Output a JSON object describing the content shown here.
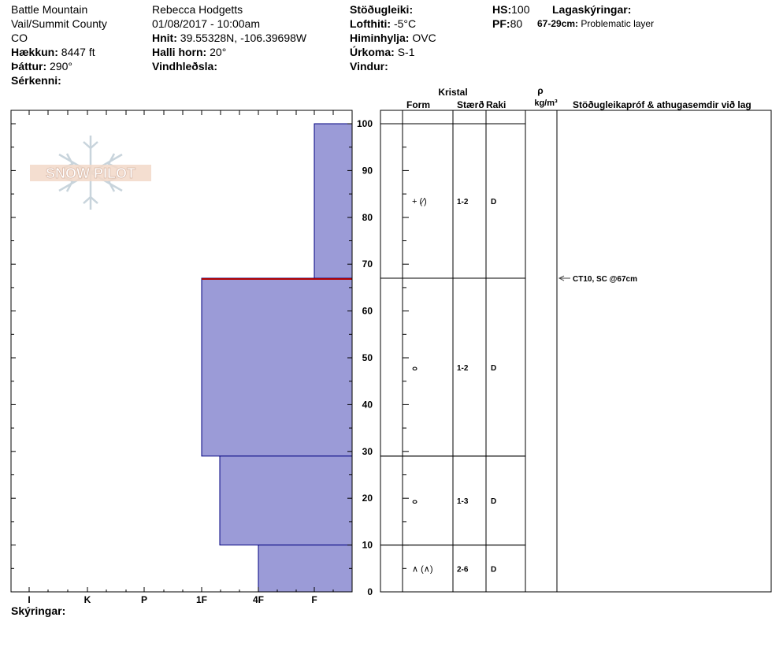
{
  "header": {
    "location_name": "Battle Mountain",
    "region": "Vail/Summit County",
    "state": "CO",
    "elevation_label": "Hækkun:",
    "elevation_value": "8447 ft",
    "aspect_label": "Þáttur:",
    "aspect_value": "290°",
    "features_label": "Sérkenni:",
    "observer": "Rebecca Hodgetts",
    "datetime": "01/08/2017 - 10:00am",
    "coords_label": "Hnit:",
    "coords_value": "39.55328N, -106.39698W",
    "slope_label": "Halli horn:",
    "slope_value": "20°",
    "wind_loading_label": "Vindhleðsla:",
    "stability_label": "Stöðugleiki:",
    "air_temp_label": "Lofthiti:",
    "air_temp_value": "-5°C",
    "sky_label": "Himinhylja:",
    "sky_value": "OVC",
    "precip_label": "Úrkoma:",
    "precip_value": "S-1",
    "wind_label": "Vindur:",
    "hs_label": "HS:",
    "hs_value": "100",
    "pf_label": "PF:",
    "pf_value": "80",
    "layer_notes_label": "Lagaskýringar:",
    "layer_note_range": "67-29cm:",
    "layer_note_text": "Problematic layer"
  },
  "table_headers": {
    "crystal": "Kristal",
    "form": "Form",
    "size": "Stærð",
    "moisture": "Raki",
    "rho": "ρ",
    "density_unit": "kg/m³",
    "comments": "Stöðugleikapróf & athugasemdir við lag"
  },
  "logo_text": "SNOW PILOT",
  "footer": {
    "notes_label": "Skýringar:"
  },
  "colors": {
    "layer_fill": "#9b9bd7",
    "layer_stroke": "#000080",
    "problem_line": "#b00000"
  },
  "chart_data": {
    "type": "bar",
    "orientation": "horizontal",
    "y_axis": {
      "label": "",
      "ylim": [
        0,
        100
      ],
      "ticks": [
        0,
        10,
        20,
        30,
        40,
        50,
        60,
        70,
        80,
        90,
        100
      ]
    },
    "x_axis": {
      "categories": [
        "I",
        "K",
        "P",
        "1F",
        "4F",
        "F"
      ],
      "reversed": true
    },
    "layers": [
      {
        "bottom": 67,
        "top": 100,
        "hardness": "F",
        "form": "+ (⁄)",
        "size": "1-2",
        "moisture": "D"
      },
      {
        "bottom": 29,
        "top": 67,
        "hardness": "1F",
        "form": "ⴰ",
        "size": "1-2",
        "moisture": "D"
      },
      {
        "bottom": 10,
        "top": 29,
        "hardness": "1F-",
        "form": "ⴰ",
        "size": "1-3",
        "moisture": "D"
      },
      {
        "bottom": 0,
        "top": 10,
        "hardness": "4F",
        "form": "∧ (∧)",
        "size": "2-6",
        "moisture": "D"
      }
    ],
    "tests": [
      {
        "depth": 67,
        "text": "CT10, SC @67cm"
      }
    ],
    "problematic_layer": {
      "top": 67,
      "bottom": 29
    }
  }
}
